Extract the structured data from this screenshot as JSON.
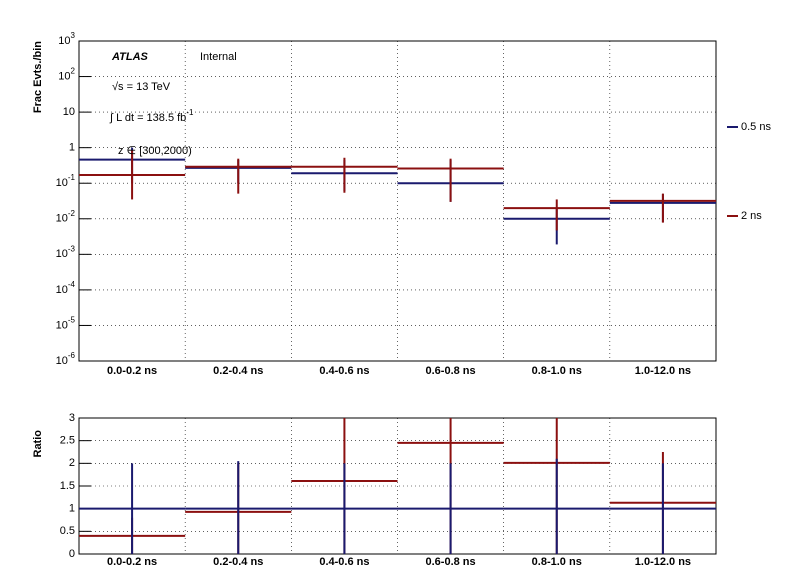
{
  "chart_data": [
    {
      "type": "step-errorbar",
      "y_label": "Frac Evts./bin",
      "log_y": true,
      "grid": true,
      "legend": "right",
      "annotations": {
        "experiment": "ATLAS",
        "status": "Internal",
        "energy": "√s = 13 TeV",
        "lumi": "∫ L dt = 138.5 fb^-1",
        "selection": "z ∈ [300,2000)"
      },
      "categories": [
        "0.0-0.2 ns",
        "0.2-0.4 ns",
        "0.4-0.6 ns",
        "0.6-0.8 ns",
        "0.8-1.0 ns",
        "1.0-12.0 ns"
      ],
      "ylim": [
        1e-06,
        1000
      ],
      "yticks": [
        {
          "value": 1e-06,
          "label": "10^-6"
        },
        {
          "value": 1e-05,
          "label": "10^-5"
        },
        {
          "value": 0.0001,
          "label": "10^-4"
        },
        {
          "value": 0.001,
          "label": "10^-3"
        },
        {
          "value": 0.01,
          "label": "10^-2"
        },
        {
          "value": 0.1,
          "label": "10^-1"
        },
        1,
        10,
        {
          "value": 100,
          "label": "10^2"
        },
        {
          "value": 1000,
          "label": "10^3"
        }
      ],
      "series": [
        {
          "name": "0.5 ns",
          "color": "#1a1a6e",
          "values": [
            0.46,
            0.27,
            0.19,
            0.1,
            0.01,
            0.028
          ],
          "err_lo": [
            0.1,
            0.1,
            0.06,
            0.03,
            0.0019,
            0.008
          ],
          "err_hi": [
            1.0,
            0.45,
            0.45,
            0.45,
            0.019,
            0.05
          ]
        },
        {
          "name": "2 ns",
          "color": "#8b1010",
          "values": [
            0.17,
            0.29,
            0.29,
            0.26,
            0.02,
            0.032
          ],
          "err_lo": [
            0.035,
            0.051,
            0.054,
            0.03,
            0.0047,
            0.0078
          ],
          "err_hi": [
            0.83,
            0.49,
            0.52,
            0.49,
            0.035,
            0.051
          ]
        }
      ]
    },
    {
      "type": "step-errorbar",
      "y_label": "Ratio",
      "log_y": false,
      "grid": true,
      "categories": [
        "0.0-0.2 ns",
        "0.2-0.4 ns",
        "0.4-0.6 ns",
        "0.6-0.8 ns",
        "0.8-1.0 ns",
        "1.0-12.0 ns"
      ],
      "ylim": [
        0,
        3
      ],
      "yticks": [
        0,
        0.5,
        1,
        1.5,
        2,
        2.5,
        3
      ],
      "series": [
        {
          "color": "#8b1010",
          "values": [
            0.4,
            0.93,
            1.61,
            2.45,
            2.01,
            1.13
          ],
          "err_lo": [
            0,
            0,
            0,
            0,
            0,
            0
          ],
          "err_hi": [
            0.8,
            2.0,
            3.5,
            3.5,
            3.5,
            2.25
          ]
        },
        {
          "color": "#1a1a6e",
          "values": [
            1,
            1,
            1,
            1,
            1,
            1
          ],
          "err_lo": [
            0,
            0,
            0,
            0,
            0,
            0
          ],
          "err_hi": [
            2,
            2.05,
            2,
            2,
            2.1,
            2
          ]
        }
      ]
    }
  ]
}
